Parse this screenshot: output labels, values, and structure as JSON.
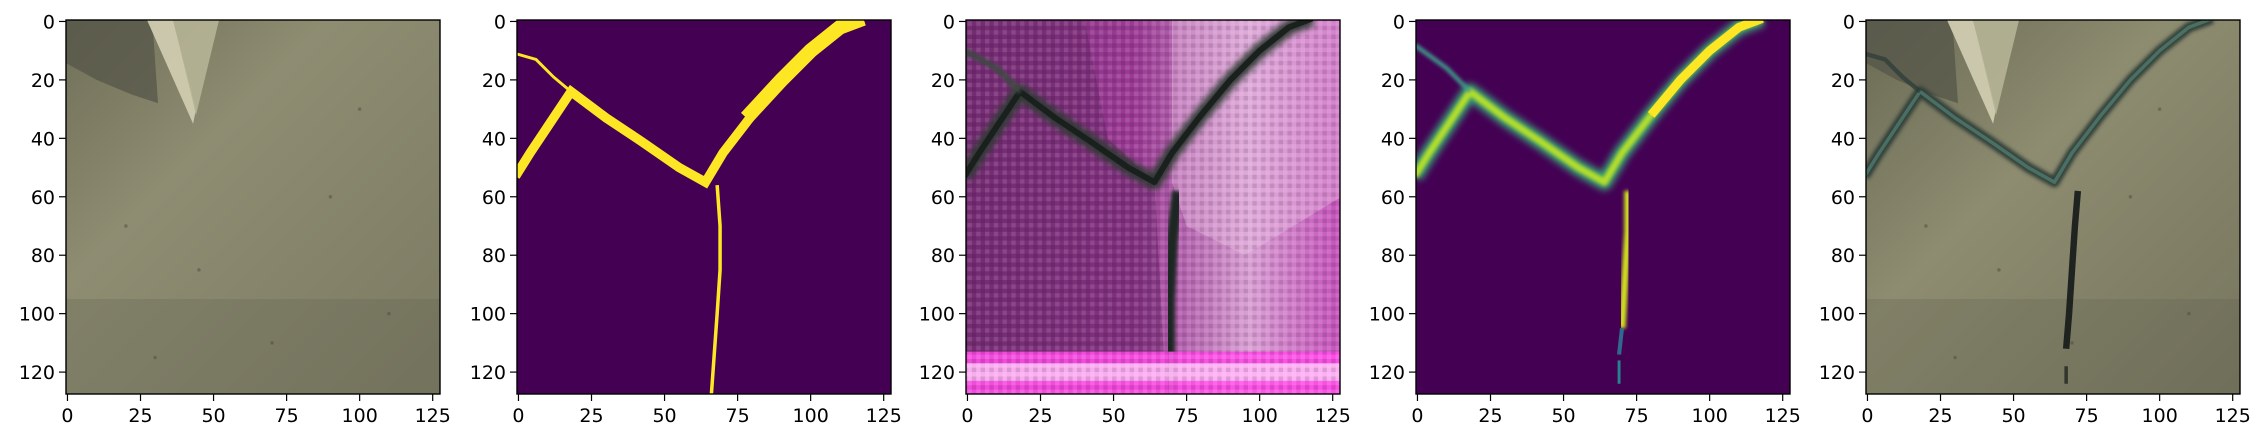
{
  "figure": {
    "panels": [
      {
        "id": "input-photo",
        "kind": "photo"
      },
      {
        "id": "crack-mask",
        "kind": "mask"
      },
      {
        "id": "generated-texture",
        "kind": "texture"
      },
      {
        "id": "predicted-heatmap",
        "kind": "heatmap"
      },
      {
        "id": "composite-photo",
        "kind": "composite"
      }
    ],
    "x_ticks": [
      "0",
      "25",
      "50",
      "75",
      "100",
      "125"
    ],
    "y_ticks": [
      "0",
      "20",
      "40",
      "60",
      "80",
      "100",
      "120"
    ],
    "x_tick_values": [
      0,
      25,
      50,
      75,
      100,
      125
    ],
    "y_tick_values": [
      0,
      20,
      40,
      60,
      80,
      100,
      120
    ],
    "image_extent": [
      -0.5,
      127.5
    ],
    "colors": {
      "viridis_dark": "#440154",
      "viridis_yellow": "#fde725",
      "viridis_green": "#35b779",
      "wall": "#8b8a6e",
      "crack_dark": "#1e2a26",
      "magenta": "#d43cc8"
    }
  }
}
